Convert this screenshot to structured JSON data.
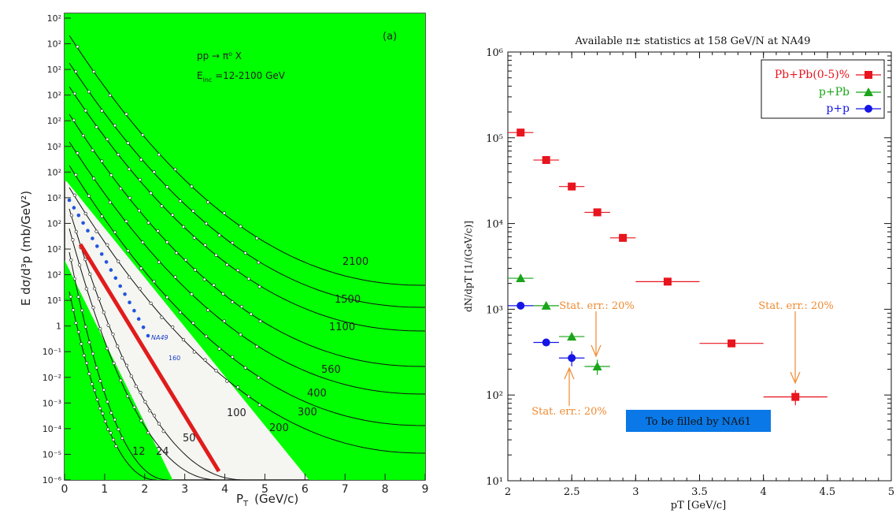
{
  "chart_data": [
    {
      "type": "scatter",
      "title": "",
      "annotation_process": "pp → π⁰ X",
      "annotation_energy_prefix": "E",
      "annotation_energy_sub": "inc",
      "annotation_energy_suffix": " =12-2100 GeV",
      "panel_label": "(a)",
      "xlabel_main": "P",
      "xlabel_sub": "T",
      "xlabel_unit": "(GeV/c)",
      "ylabel": "E dσ/d³p  (mb/GeV²)",
      "xlim": [
        0,
        9
      ],
      "x_ticks": [
        "0",
        "1",
        "2",
        "3",
        "4",
        "5",
        "6",
        "7",
        "8",
        "9"
      ],
      "y_tick_labels": [
        "10²",
        "10²",
        "10²",
        "10²",
        "10²",
        "10²",
        "10²",
        "10²",
        "10²",
        "10²",
        "10²",
        "10¹",
        "1",
        "10⁻¹",
        "10⁻²",
        "10⁻³",
        "10⁻⁴",
        "10⁻⁵",
        "10⁻⁶"
      ],
      "colors": {
        "fill": "#00ff00",
        "red_line": "#e11b1b",
        "blue_dots": "#2255dd",
        "blue_text": "#1a3cc8"
      },
      "energy_labels": [
        "2100",
        "1500",
        "1100",
        "560",
        "400",
        "300",
        "200",
        "100",
        "50",
        "24",
        "12"
      ],
      "na49_label": "NA49",
      "na49_energy_label": "160"
    },
    {
      "type": "scatter",
      "title": "Available π± statistics at 158 GeV/N at NA49",
      "xlabel": "pT [GeV/c]",
      "ylabel": "dN/dpT [1/(GeV/c)]",
      "xlim": [
        2,
        5
      ],
      "ylim": [
        10,
        1000000
      ],
      "y_log": true,
      "x_ticks": [
        "2",
        "2.5",
        "3",
        "3.5",
        "4",
        "4.5",
        "5"
      ],
      "y_ticks": [
        "10¹",
        "10²",
        "10³",
        "10⁴",
        "10⁵",
        "10⁶"
      ],
      "legend_position": "top-right",
      "series": [
        {
          "name": "Pb+Pb(0-5)%",
          "color": "#e8141e",
          "marker": "square",
          "points": [
            {
              "x": 2.1,
              "y": 115000,
              "xerr": 0.1
            },
            {
              "x": 2.3,
              "y": 55000,
              "xerr": 0.1
            },
            {
              "x": 2.5,
              "y": 27000,
              "xerr": 0.1
            },
            {
              "x": 2.7,
              "y": 13500,
              "xerr": 0.1
            },
            {
              "x": 2.9,
              "y": 6800,
              "xerr": 0.1
            },
            {
              "x": 3.25,
              "y": 2100,
              "xerr": 0.25
            },
            {
              "x": 3.75,
              "y": 400,
              "xerr": 0.25
            },
            {
              "x": 4.25,
              "y": 95,
              "xerr": 0.25,
              "yerr_rel": 0.2
            }
          ]
        },
        {
          "name": "p+Pb",
          "color": "#1aa51a",
          "marker": "triangle",
          "points": [
            {
              "x": 2.1,
              "y": 2300,
              "xerr": 0.1
            },
            {
              "x": 2.3,
              "y": 1100,
              "xerr": 0.1
            },
            {
              "x": 2.5,
              "y": 480,
              "xerr": 0.1
            },
            {
              "x": 2.7,
              "y": 215,
              "xerr": 0.1,
              "yerr_rel": 0.2
            }
          ]
        },
        {
          "name": "p+p",
          "color": "#1515e6",
          "marker": "circle",
          "points": [
            {
              "x": 2.1,
              "y": 1100,
              "xerr": 0.1
            },
            {
              "x": 2.3,
              "y": 410,
              "xerr": 0.1
            },
            {
              "x": 2.5,
              "y": 270,
              "xerr": 0.1,
              "yerr_rel": 0.2
            }
          ]
        }
      ],
      "annotations": [
        {
          "text": "Stat. err.: 20%",
          "color": "#f08a30"
        },
        {
          "text": "Stat. err.: 20%",
          "color": "#f08a30"
        },
        {
          "text": "Stat. err.: 20%",
          "color": "#f08a30"
        }
      ],
      "box_label": "To be filled by NA61",
      "box_color": "#0a78e6"
    }
  ]
}
